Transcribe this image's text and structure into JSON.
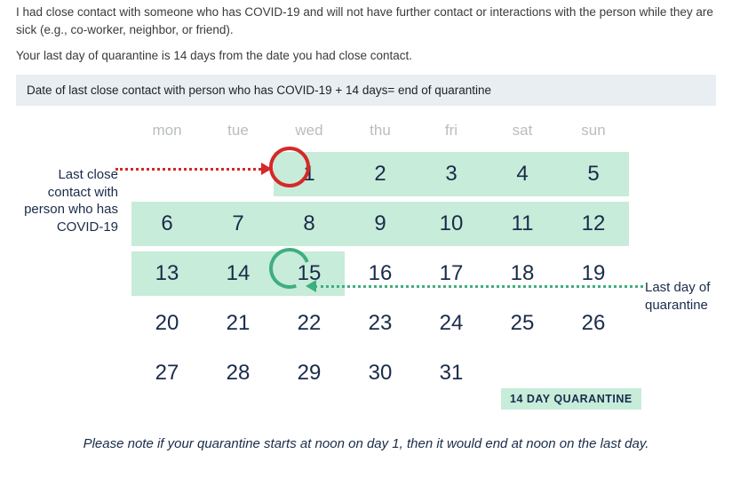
{
  "intro": "I had close contact with someone who has COVID-19 and will not have further contact or interactions with the person while they are sick (e.g., co-worker, neighbor, or friend).",
  "subintro": "Your last day of quarantine is 14 days from the date you had close contact.",
  "formula": "Date of last close contact with person who has COVID-19 + 14 days= end of quarantine",
  "labels": {
    "left": "Last close contact with person who has COVID-19",
    "right": "Last day of quarantine",
    "badge": "14 DAY QUARANTINE"
  },
  "calendar": {
    "day_headers": [
      "mon",
      "tue",
      "wed",
      "thu",
      "fri",
      "sat",
      "sun"
    ],
    "rows": [
      {
        "cells": [
          "",
          "",
          "1",
          "2",
          "3",
          "4",
          "5"
        ],
        "band_from": 2
      },
      {
        "cells": [
          "6",
          "7",
          "8",
          "9",
          "10",
          "11",
          "12"
        ],
        "band_from": 0
      },
      {
        "cells": [
          "13",
          "14",
          "15",
          "16",
          "17",
          "18",
          "19"
        ],
        "band_from": 0,
        "band_to": 2
      },
      {
        "cells": [
          "20",
          "21",
          "22",
          "23",
          "24",
          "25",
          "26"
        ],
        "band_from": null
      },
      {
        "cells": [
          "27",
          "28",
          "29",
          "30",
          "31",
          "",
          ""
        ],
        "band_from": null
      }
    ],
    "circle_red_day": "1",
    "circle_green_day": "15",
    "colors": {
      "band": "#c7ecd9",
      "red": "#d62828",
      "green": "#3fae7f",
      "text": "#1a2b4a",
      "header": "#b9bdbe",
      "formula_bg": "#e8eef1"
    },
    "font_sizes": {
      "day": 24,
      "header": 17,
      "label": 15
    }
  },
  "footnote": "Please note if your quarantine starts at noon on day 1, then it would end at noon on the last day."
}
